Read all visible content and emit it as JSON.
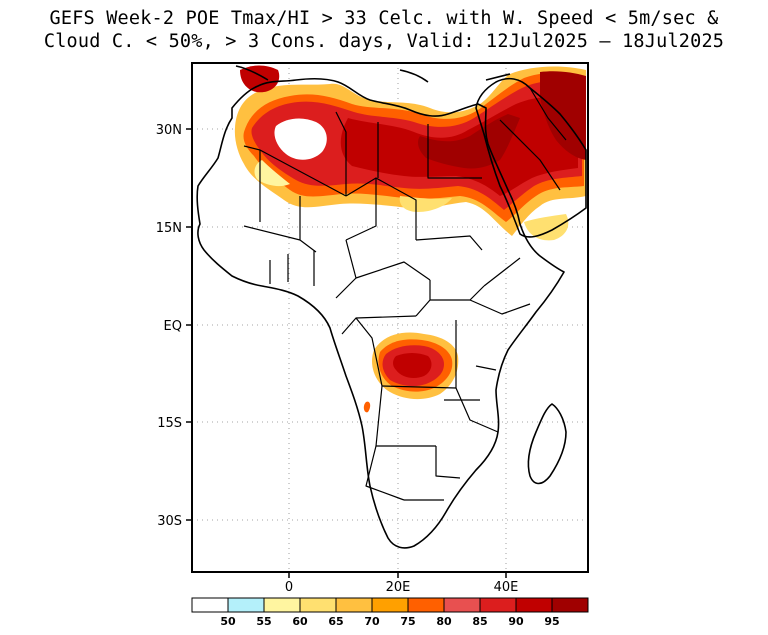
{
  "title": {
    "line1": "GEFS Week-2 POE Tmax/HI > 33 Celc. with W. Speed < 5m/sec &",
    "line2": "Cloud C. < 50%, > 3 Cons. days, Valid: 12Jul2025 – 18Jul2025"
  },
  "map": {
    "region": "Africa",
    "lat_ticks": [
      "30N",
      "15N",
      "EQ",
      "15S",
      "30S"
    ],
    "lon_ticks": [
      "0",
      "20E",
      "40E"
    ],
    "gridlines": "dotted"
  },
  "colorbar": {
    "labels": [
      "50",
      "55",
      "60",
      "65",
      "70",
      "75",
      "80",
      "85",
      "90",
      "95"
    ],
    "colors": [
      "#ffffff",
      "#b4f0fa",
      "#fff5a0",
      "#ffe070",
      "#ffc040",
      "#ffa000",
      "#ff6000",
      "#e85050",
      "#dc1e1e",
      "#c00000",
      "#a00000"
    ]
  }
}
